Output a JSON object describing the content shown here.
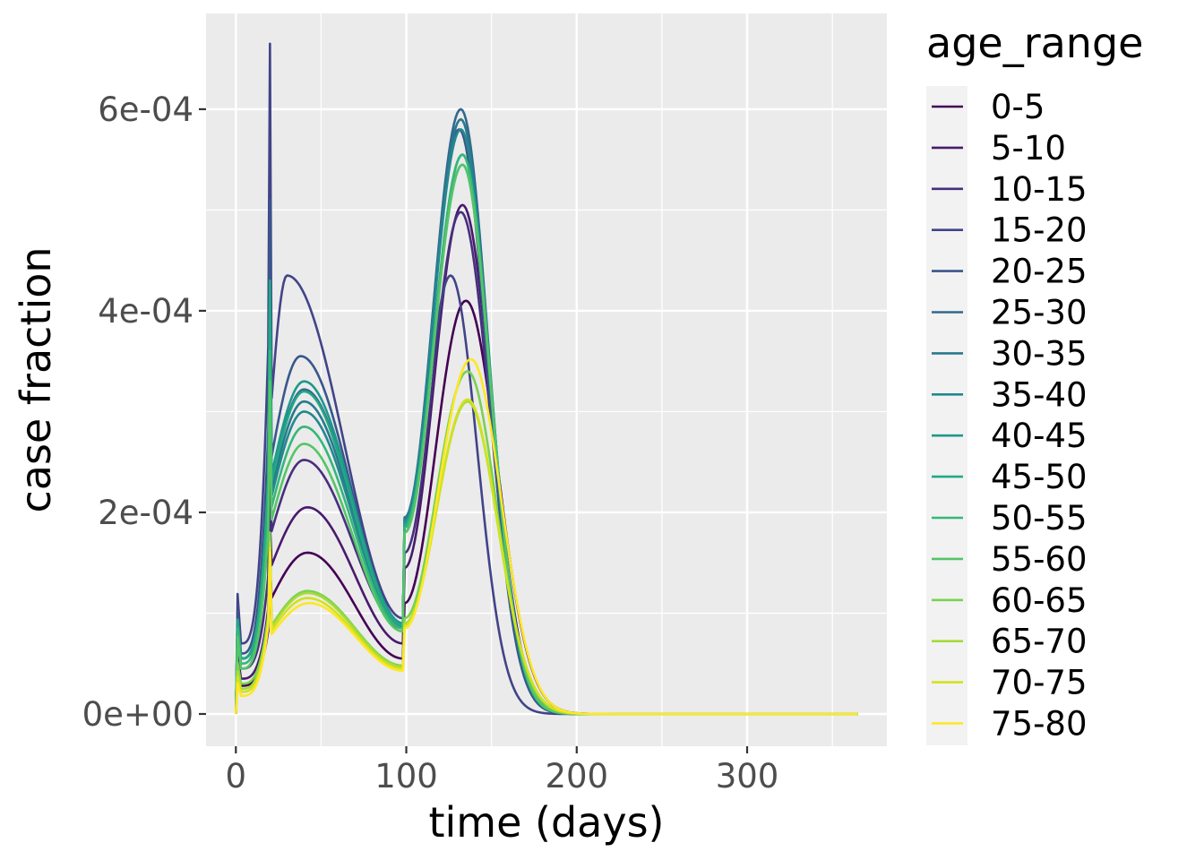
{
  "chart_data": {
    "type": "line",
    "title": "",
    "xlabel": "time (days)",
    "ylabel": "case fraction",
    "xlim": [
      -17.5,
      382
    ],
    "ylim": [
      -3.2e-05,
      0.000695
    ],
    "x_ticks": [
      0,
      100,
      200,
      300
    ],
    "x_tick_labels": [
      "0",
      "100",
      "200",
      "300"
    ],
    "y_ticks": [
      0,
      0.0002,
      0.0004,
      0.0006
    ],
    "y_tick_labels": [
      "0e+00",
      "2e-04",
      "4e-04",
      "6e-04"
    ],
    "grid": true,
    "legend_title": "age_range",
    "legend_position": "right",
    "series": [
      {
        "name": "0-5",
        "color": "#440154",
        "p": {
          "s1": 2.8e-05,
          "spike": 0.00015,
          "p1": 0.00016,
          "p1d": 42,
          "e1": 5.5e-05,
          "s2": 0.00011,
          "p2": 0.00041,
          "p2d": 135,
          "w": 26
        }
      },
      {
        "name": "5-10",
        "color": "#481A6C",
        "p": {
          "s1": 3.5e-05,
          "spike": 0.00019,
          "p1": 0.000205,
          "p1d": 42,
          "e1": 7e-05,
          "s2": 0.000145,
          "p2": 0.000505,
          "p2d": 133,
          "w": 24
        }
      },
      {
        "name": "10-15",
        "color": "#472F7D",
        "p": {
          "s1": 4.5e-05,
          "spike": 0.00025,
          "p1": 0.000252,
          "p1d": 40,
          "e1": 8.5e-05,
          "s2": 0.00016,
          "p2": 0.000498,
          "p2d": 132,
          "w": 24
        }
      },
      {
        "name": "15-20",
        "color": "#414487",
        "p": {
          "s1": 7e-05,
          "spike": 0.000665,
          "p1": 0.000435,
          "p1d": 30,
          "e1": 9.5e-05,
          "s2": 0.00018,
          "p2": 0.000435,
          "p2d": 126,
          "w": 22
        }
      },
      {
        "name": "20-25",
        "color": "#39568C",
        "p": {
          "s1": 6e-05,
          "spike": 0.00051,
          "p1": 0.000355,
          "p1d": 38,
          "e1": 9e-05,
          "s2": 0.00019,
          "p2": 0.00058,
          "p2d": 131,
          "w": 23
        }
      },
      {
        "name": "25-30",
        "color": "#31688E",
        "p": {
          "s1": 5.5e-05,
          "spike": 0.00042,
          "p1": 0.000322,
          "p1d": 40,
          "e1": 9e-05,
          "s2": 0.000195,
          "p2": 0.0006,
          "p2d": 132,
          "w": 23
        }
      },
      {
        "name": "30-35",
        "color": "#2A788E",
        "p": {
          "s1": 5.5e-05,
          "spike": 0.0004,
          "p1": 0.00031,
          "p1d": 40,
          "e1": 8.8e-05,
          "s2": 0.000195,
          "p2": 0.00059,
          "p2d": 132,
          "w": 23
        }
      },
      {
        "name": "35-40",
        "color": "#23888E",
        "p": {
          "s1": 5.5e-05,
          "spike": 0.00039,
          "p1": 0.0003,
          "p1d": 40,
          "e1": 8.7e-05,
          "s2": 0.000192,
          "p2": 0.00058,
          "p2d": 132,
          "w": 23
        }
      },
      {
        "name": "40-45",
        "color": "#1F988B",
        "p": {
          "s1": 5.5e-05,
          "spike": 0.00042,
          "p1": 0.00033,
          "p1d": 40,
          "e1": 9e-05,
          "s2": 0.00019,
          "p2": 0.000555,
          "p2d": 133,
          "w": 23
        }
      },
      {
        "name": "45-50",
        "color": "#22A884",
        "p": {
          "s1": 5.5e-05,
          "spike": 0.00043,
          "p1": 0.00032,
          "p1d": 40,
          "e1": 8.8e-05,
          "s2": 0.000188,
          "p2": 0.000545,
          "p2d": 133,
          "w": 23
        }
      },
      {
        "name": "50-55",
        "color": "#35B779",
        "p": {
          "s1": 5e-05,
          "spike": 0.00036,
          "p1": 0.000285,
          "p1d": 40,
          "e1": 8.5e-05,
          "s2": 0.000185,
          "p2": 0.000555,
          "p2d": 133,
          "w": 23
        }
      },
      {
        "name": "55-60",
        "color": "#54C568",
        "p": {
          "s1": 4.5e-05,
          "spike": 0.00033,
          "p1": 0.000268,
          "p1d": 40,
          "e1": 8.2e-05,
          "s2": 0.00018,
          "p2": 0.000545,
          "p2d": 133,
          "w": 23
        }
      },
      {
        "name": "60-65",
        "color": "#7AD151",
        "p": {
          "s1": 3e-05,
          "spike": 0.00018,
          "p1": 0.000122,
          "p1d": 42,
          "e1": 4.8e-05,
          "s2": 9.5e-05,
          "p2": 0.00034,
          "p2d": 136,
          "w": 24
        }
      },
      {
        "name": "65-70",
        "color": "#A5DB36",
        "p": {
          "s1": 2.5e-05,
          "spike": 0.00017,
          "p1": 0.00012,
          "p1d": 42,
          "e1": 4.7e-05,
          "s2": 9e-05,
          "p2": 0.00031,
          "p2d": 136,
          "w": 25
        }
      },
      {
        "name": "70-75",
        "color": "#D2E21B",
        "p": {
          "s1": 2.2e-05,
          "spike": 0.000165,
          "p1": 0.000115,
          "p1d": 42,
          "e1": 4.5e-05,
          "s2": 8.8e-05,
          "p2": 0.000312,
          "p2d": 136,
          "w": 25
        }
      },
      {
        "name": "75-80",
        "color": "#FDE725",
        "p": {
          "s1": 1.8e-05,
          "spike": 0.00016,
          "p1": 0.00011,
          "p1d": 43,
          "e1": 4.3e-05,
          "s2": 8.5e-05,
          "p2": 0.000352,
          "p2d": 138,
          "w": 25
        }
      }
    ]
  }
}
